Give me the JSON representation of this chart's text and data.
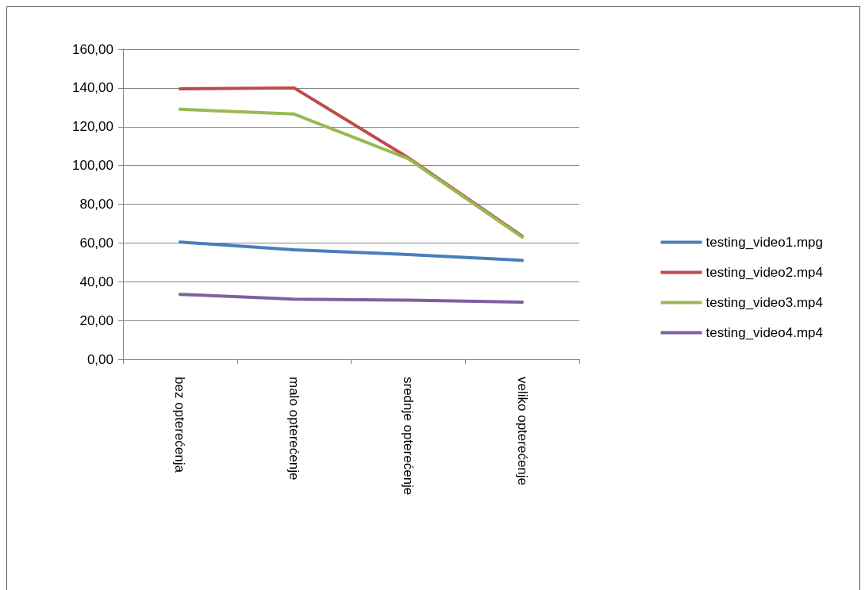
{
  "chart_data": {
    "type": "line",
    "categories": [
      "bez opterećenja",
      "malo opterećenje",
      "srednje opterećenje",
      "veliko opterećenje"
    ],
    "series": [
      {
        "name": "testing_video1.mpg",
        "color": "#4a7ebb",
        "values": [
          60.5,
          56.5,
          54,
          51
        ]
      },
      {
        "name": "testing_video2.mp4",
        "color": "#be4b48",
        "values": [
          139.5,
          140,
          104,
          63.5
        ]
      },
      {
        "name": "testing_video3.mp4",
        "color": "#98b954",
        "values": [
          129,
          126.5,
          103.5,
          63
        ]
      },
      {
        "name": "testing_video4.mp4",
        "color": "#7d60a0",
        "values": [
          33.5,
          31,
          30.5,
          29.5
        ]
      }
    ],
    "ylim": [
      0,
      160
    ],
    "yticks": [
      {
        "value": 0,
        "label": "0,00"
      },
      {
        "value": 20,
        "label": "20,00"
      },
      {
        "value": 40,
        "label": "40,00"
      },
      {
        "value": 60,
        "label": "60,00"
      },
      {
        "value": 80,
        "label": "80,00"
      },
      {
        "value": 100,
        "label": "100,00"
      },
      {
        "value": 120,
        "label": "120,00"
      },
      {
        "value": 140,
        "label": "140,00"
      },
      {
        "value": 160,
        "label": "160,00"
      }
    ],
    "grid": "y",
    "legend": "right",
    "marker": "none",
    "line_style": "solid"
  }
}
